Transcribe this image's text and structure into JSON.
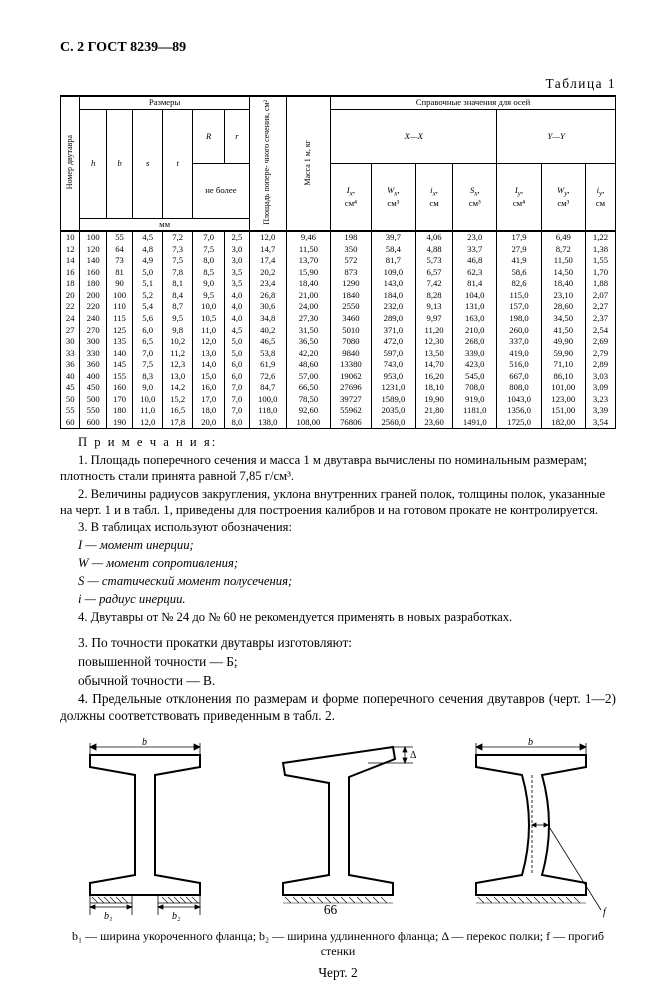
{
  "header": "С. 2 ГОСТ 8239—89",
  "table_caption": "Таблица 1",
  "table": {
    "head": {
      "nomer": "Номер двутавра",
      "razmery": "Размеры",
      "h": "h",
      "b": "b",
      "s": "s",
      "t": "t",
      "R": "R",
      "r": "r",
      "rr_note": "не более",
      "mm": "мм",
      "ploshad": "Площадь попере- чного сечения, см²",
      "massa": "Масса 1 м, кг",
      "sprav": "Справочные значения для осей",
      "xx": "X—X",
      "yy": "Y—Y",
      "Ix": "Iₓ, см⁴",
      "Wx": "Wₓ, см³",
      "ix": "iₓ, см",
      "Sx": "Sₓ, см³",
      "Iy": "Iᵧ, см⁴",
      "Wy": "Wᵧ, см³",
      "iy": "iᵧ, см"
    },
    "rows": [
      [
        "10",
        "100",
        "55",
        "4,5",
        "7,2",
        "7,0",
        "2,5",
        "12,0",
        "9,46",
        "198",
        "39,7",
        "4,06",
        "23,0",
        "17,9",
        "6,49",
        "1,22"
      ],
      [
        "12",
        "120",
        "64",
        "4,8",
        "7,3",
        "7,5",
        "3,0",
        "14,7",
        "11,50",
        "350",
        "58,4",
        "4,88",
        "33,7",
        "27,9",
        "8,72",
        "1,38"
      ],
      [
        "14",
        "140",
        "73",
        "4,9",
        "7,5",
        "8,0",
        "3,0",
        "17,4",
        "13,70",
        "572",
        "81,7",
        "5,73",
        "46,8",
        "41,9",
        "11,50",
        "1,55"
      ],
      [
        "16",
        "160",
        "81",
        "5,0",
        "7,8",
        "8,5",
        "3,5",
        "20,2",
        "15,90",
        "873",
        "109,0",
        "6,57",
        "62,3",
        "58,6",
        "14,50",
        "1,70"
      ],
      [
        "18",
        "180",
        "90",
        "5,1",
        "8,1",
        "9,0",
        "3,5",
        "23,4",
        "18,40",
        "1290",
        "143,0",
        "7,42",
        "81,4",
        "82,6",
        "18,40",
        "1,88"
      ],
      [
        "20",
        "200",
        "100",
        "5,2",
        "8,4",
        "9,5",
        "4,0",
        "26,8",
        "21,00",
        "1840",
        "184,0",
        "8,28",
        "104,0",
        "115,0",
        "23,10",
        "2,07"
      ],
      [
        "22",
        "220",
        "110",
        "5,4",
        "8,7",
        "10,0",
        "4,0",
        "30,6",
        "24,00",
        "2550",
        "232,0",
        "9,13",
        "131,0",
        "157,0",
        "28,60",
        "2,27"
      ],
      [
        "24",
        "240",
        "115",
        "5,6",
        "9,5",
        "10,5",
        "4,0",
        "34,8",
        "27,30",
        "3460",
        "289,0",
        "9,97",
        "163,0",
        "198,0",
        "34,50",
        "2,37"
      ],
      [
        "27",
        "270",
        "125",
        "6,0",
        "9,8",
        "11,0",
        "4,5",
        "40,2",
        "31,50",
        "5010",
        "371,0",
        "11,20",
        "210,0",
        "260,0",
        "41,50",
        "2,54"
      ],
      [
        "30",
        "300",
        "135",
        "6,5",
        "10,2",
        "12,0",
        "5,0",
        "46,5",
        "36,50",
        "7080",
        "472,0",
        "12,30",
        "268,0",
        "337,0",
        "49,90",
        "2,69"
      ],
      [
        "33",
        "330",
        "140",
        "7,0",
        "11,2",
        "13,0",
        "5,0",
        "53,8",
        "42,20",
        "9840",
        "597,0",
        "13,50",
        "339,0",
        "419,0",
        "59,90",
        "2,79"
      ],
      [
        "36",
        "360",
        "145",
        "7,5",
        "12,3",
        "14,0",
        "6,0",
        "61,9",
        "48,60",
        "13380",
        "743,0",
        "14,70",
        "423,0",
        "516,0",
        "71,10",
        "2,89"
      ],
      [
        "40",
        "400",
        "155",
        "8,3",
        "13,0",
        "15,0",
        "6,0",
        "72,6",
        "57,00",
        "19062",
        "953,0",
        "16,20",
        "545,0",
        "667,0",
        "86,10",
        "3,03"
      ],
      [
        "45",
        "450",
        "160",
        "9,0",
        "14,2",
        "16,0",
        "7,0",
        "84,7",
        "66,50",
        "27696",
        "1231,0",
        "18,10",
        "708,0",
        "808,0",
        "101,00",
        "3,09"
      ],
      [
        "50",
        "500",
        "170",
        "10,0",
        "15,2",
        "17,0",
        "7,0",
        "100,0",
        "78,50",
        "39727",
        "1589,0",
        "19,90",
        "919,0",
        "1043,0",
        "123,00",
        "3,23"
      ],
      [
        "55",
        "550",
        "180",
        "11,0",
        "16,5",
        "18,0",
        "7,0",
        "118,0",
        "92,60",
        "55962",
        "2035,0",
        "21,80",
        "1181,0",
        "1356,0",
        "151,00",
        "3,39"
      ],
      [
        "60",
        "600",
        "190",
        "12,0",
        "17,8",
        "20,0",
        "8,0",
        "138,0",
        "108,00",
        "76806",
        "2560,0",
        "23,60",
        "1491,0",
        "1725,0",
        "182,00",
        "3,54"
      ]
    ]
  },
  "notes_label": "П р и м е ч а н и я:",
  "notes": [
    "1. Площадь поперечного сечения и масса 1 м двутавра вычислены по номинальным размерам; плотность стали принята равной 7,85 г/см³.",
    "2. Величины радиусов закругления, уклона внутренних граней полок, толщины полок, указанные на черт. 1 и в табл. 1, приведены для построения калибров и на готовом прокате не контролируется.",
    "3. В таблицах используют обозначения:",
    "I — момент инерции;",
    "W — момент сопротивления;",
    "S — статический момент полусечения;",
    "i — радиус инерции.",
    "4. Двутавры от № 24 до № 60 не рекомендуется применять в новых разработках."
  ],
  "body": [
    "3. По точности прокатки двутавры изготовляют:",
    "повышенной точности — Б;",
    "обычной точности — В.",
    "4. Предельные отклонения по размерам и форме поперечного сечения двутавров (черт. 1—2) должны соответствовать приведенным в табл. 2."
  ],
  "figures": {
    "labels": {
      "b": "b",
      "b1": "b₁",
      "b2": "b₂",
      "delta": "Δ",
      "f": "f"
    },
    "caption": "b₁ — ширина укороченного фланца; b₂ — ширина удлиненного фланца; Δ — перекос полки; f — прогиб стенки",
    "drawing_label": "Черт. 2"
  },
  "page_num": "66"
}
